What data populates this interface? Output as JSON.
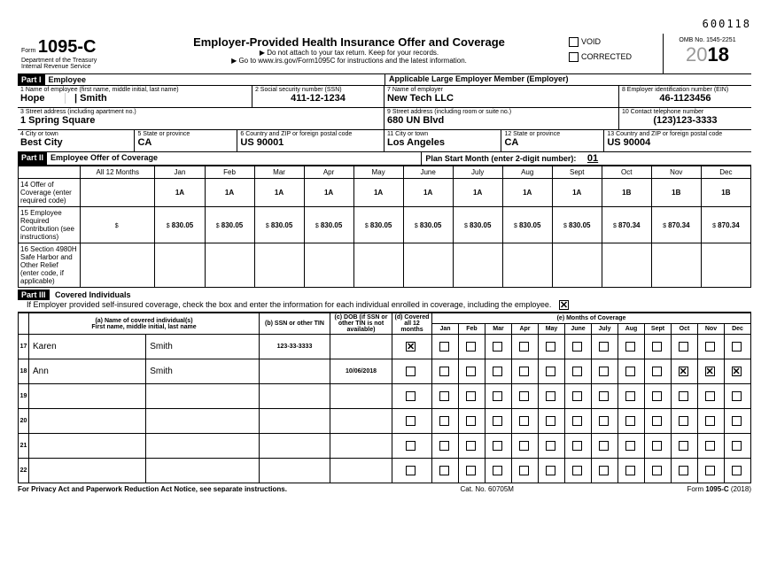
{
  "top_number": "600118",
  "form": {
    "prefix": "Form",
    "number": "1095-C",
    "dept": "Department of the Treasury",
    "irs": "Internal Revenue Service"
  },
  "header": {
    "title": "Employer-Provided Health Insurance Offer and Coverage",
    "sub1": "▶ Do not attach to your tax return. Keep for your records.",
    "sub2": "▶ Go to www.irs.gov/Form1095C for instructions and the latest information.",
    "void": "VOID",
    "void_checked": false,
    "corrected": "CORRECTED",
    "corrected_checked": false,
    "omb": "OMB No. 1545-2251",
    "year_gray": "20",
    "year_bold": "18"
  },
  "part1": {
    "label": "Part I",
    "emp_title": "Employee",
    "employer_title": "Applicable Large Employer Member (Employer)",
    "l1": "1  Name of employee (first name, middle initial, last name)",
    "first": "Hope",
    "mi": "",
    "last": "Smith",
    "l2": "2  Social security number (SSN)",
    "ssn": "411-12-1234",
    "l3": "3  Street address (including apartment no.)",
    "addr": "1 Spring Square",
    "l4": "4  City or town",
    "city": "Best City",
    "l5": "5  State or province",
    "state": "CA",
    "l6": "6  Country and ZIP or foreign postal code",
    "zip": "US 90001",
    "l7": "7  Name of employer",
    "employer": "New Tech LLC",
    "l8": "8  Employer identification number (EIN)",
    "ein": "46-1123456",
    "l9": "9  Street address (including room or suite no.)",
    "eaddr": "680 UN Blvd",
    "l10": "10 Contact telephone number",
    "phone": "(123)123-3333",
    "l11": "11 City or town",
    "ecity": "Los Angeles",
    "l12": "12 State or province",
    "estate": "CA",
    "l13": "13 Country and ZIP or foreign postal code",
    "ezip": "US 90004"
  },
  "part2": {
    "label": "Part II",
    "title": "Employee Offer of Coverage",
    "plan_start_lbl": "Plan Start Month (enter 2-digit number):",
    "plan_start": "01",
    "cols": [
      "All 12 Months",
      "Jan",
      "Feb",
      "Mar",
      "Apr",
      "May",
      "June",
      "July",
      "Aug",
      "Sept",
      "Oct",
      "Nov",
      "Dec"
    ],
    "r14_lbl": "14 Offer of Coverage (enter required code)",
    "r14": [
      "",
      "1A",
      "1A",
      "1A",
      "1A",
      "1A",
      "1A",
      "1A",
      "1A",
      "1A",
      "1B",
      "1B",
      "1B"
    ],
    "r15_lbl": "15 Employee Required Contribution (see instructions)",
    "r15": [
      "",
      "830.05",
      "830.05",
      "830.05",
      "830.05",
      "830.05",
      "830.05",
      "830.05",
      "830.05",
      "830.05",
      "870.34",
      "870.34",
      "870.34"
    ],
    "r16_lbl": "16 Section 4980H Safe Harbor and Other Relief (enter code, if applicable)",
    "r16": [
      "",
      "",
      "",
      "",
      "",
      "",
      "",
      "",
      "",
      "",
      "",
      "",
      ""
    ]
  },
  "part3": {
    "label": "Part III",
    "title": "Covered Individuals",
    "instr": "If Employer provided self-insured coverage, check the box and enter the information for each individual enrolled in coverage, including the employee.",
    "self_insured_checked": true,
    "ha": "(a) Name of covered individual(s)",
    "ha2": "First name, middle initial, last name",
    "hb": "(b) SSN or other TIN",
    "hc": "(c) DOB (if SSN or other TIN is not available)",
    "hd": "(d) Covered all 12 months",
    "he": "(e) Months of Coverage",
    "months": [
      "Jan",
      "Feb",
      "Mar",
      "Apr",
      "May",
      "June",
      "July",
      "Aug",
      "Sept",
      "Oct",
      "Nov",
      "Dec"
    ],
    "rows": [
      {
        "n": "17",
        "first": "Karen",
        "last": "Smith",
        "ssn": "123-33-3333",
        "dob": "",
        "all12": true,
        "m": [
          false,
          false,
          false,
          false,
          false,
          false,
          false,
          false,
          false,
          false,
          false,
          false
        ]
      },
      {
        "n": "18",
        "first": "Ann",
        "last": "Smith",
        "ssn": "",
        "dob": "10/06/2018",
        "all12": false,
        "m": [
          false,
          false,
          false,
          false,
          false,
          false,
          false,
          false,
          false,
          true,
          true,
          true
        ]
      },
      {
        "n": "19",
        "first": "",
        "last": "",
        "ssn": "",
        "dob": "",
        "all12": false,
        "m": [
          false,
          false,
          false,
          false,
          false,
          false,
          false,
          false,
          false,
          false,
          false,
          false
        ]
      },
      {
        "n": "20",
        "first": "",
        "last": "",
        "ssn": "",
        "dob": "",
        "all12": false,
        "m": [
          false,
          false,
          false,
          false,
          false,
          false,
          false,
          false,
          false,
          false,
          false,
          false
        ]
      },
      {
        "n": "21",
        "first": "",
        "last": "",
        "ssn": "",
        "dob": "",
        "all12": false,
        "m": [
          false,
          false,
          false,
          false,
          false,
          false,
          false,
          false,
          false,
          false,
          false,
          false
        ]
      },
      {
        "n": "22",
        "first": "",
        "last": "",
        "ssn": "",
        "dob": "",
        "all12": false,
        "m": [
          false,
          false,
          false,
          false,
          false,
          false,
          false,
          false,
          false,
          false,
          false,
          false
        ]
      }
    ]
  },
  "footer": {
    "left": "For Privacy Act and Paperwork Reduction Act Notice, see separate instructions.",
    "mid": "Cat. No. 60705M",
    "right_a": "Form ",
    "right_b": "1095-C",
    "right_c": " (2018)"
  }
}
